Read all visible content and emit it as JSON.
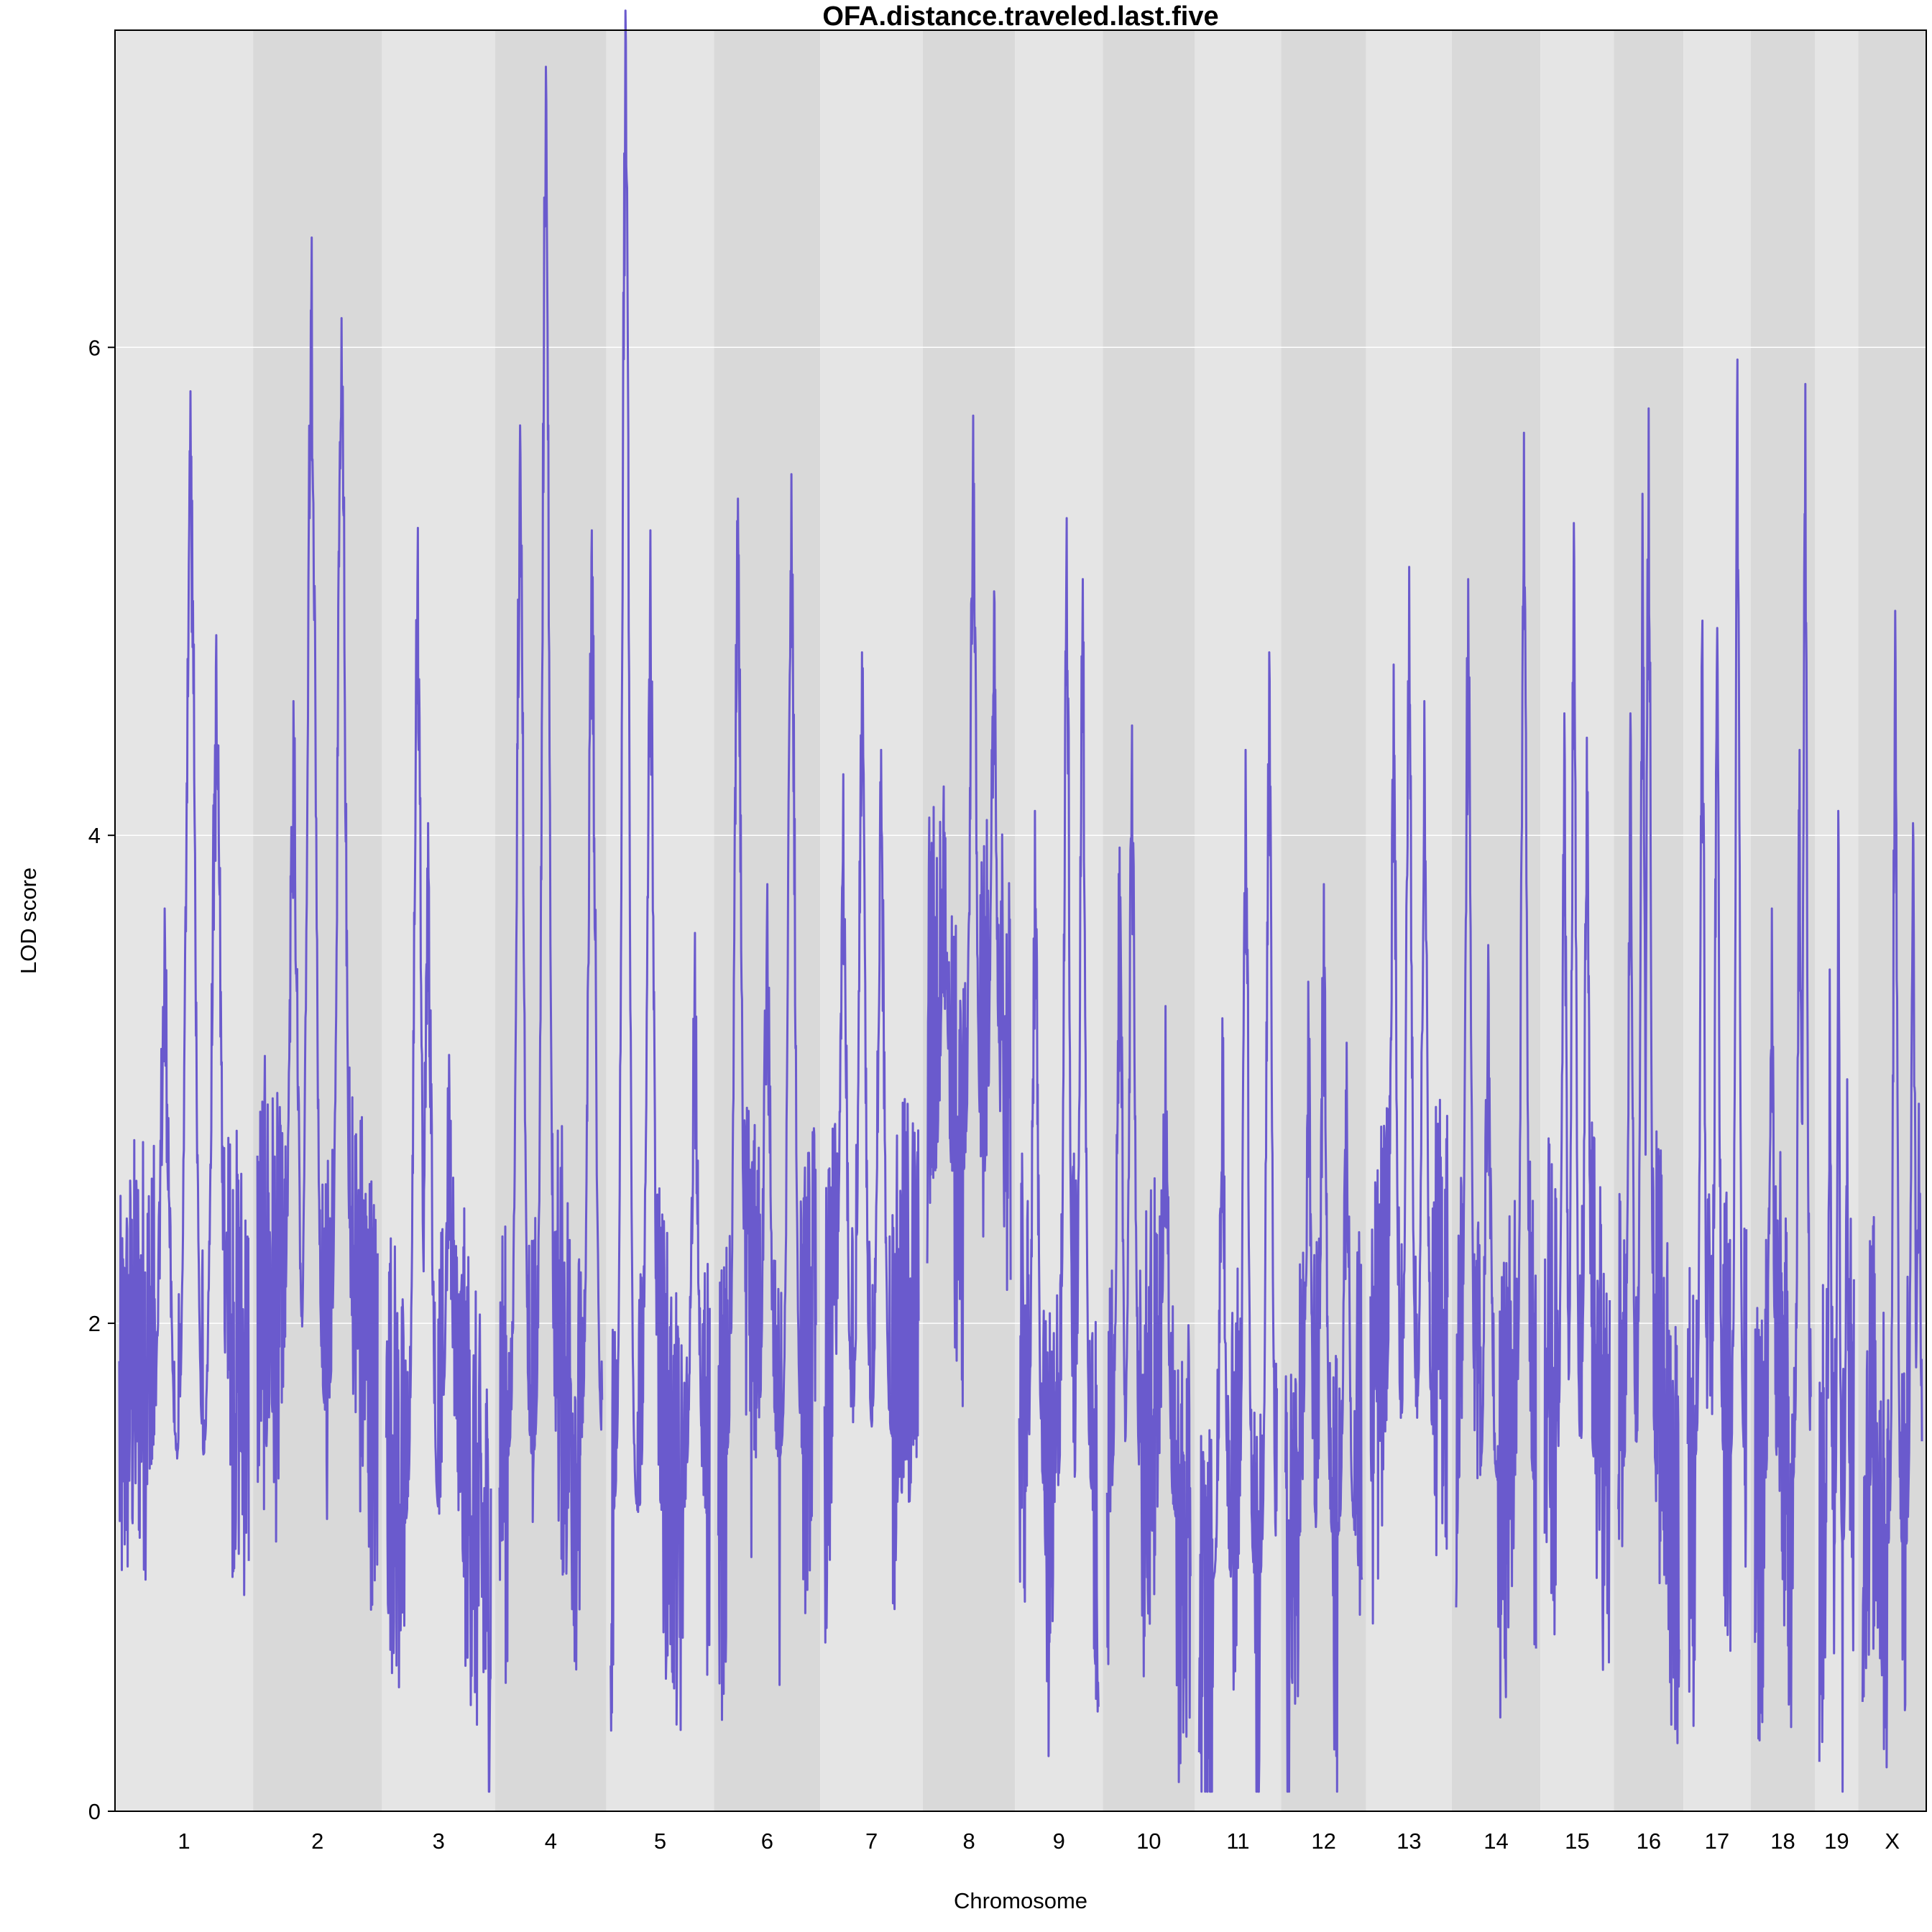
{
  "chart_data": {
    "type": "line",
    "title": "OFA.distance.traveled.last.five",
    "xlabel": "Chromosome",
    "ylabel": "LOD score",
    "ylim": [
      0,
      7.3
    ],
    "yticks": [
      0,
      2,
      4,
      6
    ],
    "grid": "horizontal",
    "colors": {
      "line": "#6a5acd",
      "band_light": "#e5e5e5",
      "band_dark": "#d9d9d9",
      "grid": "#ffffff",
      "frame": "#000000"
    },
    "chromosomes": [
      {
        "label": "1",
        "length": 195,
        "base": 1.55,
        "peaks": [
          [
            0.55,
            5.82
          ],
          [
            0.75,
            4.82
          ],
          [
            0.35,
            3.7
          ]
        ]
      },
      {
        "label": "2",
        "length": 182,
        "base": 1.8,
        "peaks": [
          [
            0.45,
            6.45
          ],
          [
            0.7,
            6.12
          ],
          [
            0.3,
            4.55
          ]
        ]
      },
      {
        "label": "3",
        "length": 160,
        "base": 1.3,
        "peaks": [
          [
            0.3,
            5.26
          ],
          [
            0.4,
            4.05
          ],
          [
            0.6,
            3.1
          ]
        ]
      },
      {
        "label": "4",
        "length": 157,
        "base": 1.6,
        "peaks": [
          [
            0.45,
            7.15
          ],
          [
            0.2,
            5.68
          ],
          [
            0.9,
            5.25
          ]
        ]
      },
      {
        "label": "5",
        "length": 152,
        "base": 1.35,
        "peaks": [
          [
            0.15,
            7.38
          ],
          [
            0.4,
            5.25
          ],
          [
            0.85,
            3.6
          ]
        ]
      },
      {
        "label": "6",
        "length": 150,
        "base": 1.6,
        "peaks": [
          [
            0.2,
            5.38
          ],
          [
            0.75,
            5.48
          ],
          [
            0.5,
            3.8
          ]
        ]
      },
      {
        "label": "7",
        "length": 145,
        "base": 1.7,
        "peaks": [
          [
            0.4,
            4.75
          ],
          [
            0.6,
            4.35
          ],
          [
            0.2,
            4.25
          ]
        ]
      },
      {
        "label": "8",
        "length": 130,
        "base": 2.9,
        "peaks": [
          [
            0.55,
            5.72
          ],
          [
            0.8,
            5.0
          ],
          [
            0.2,
            4.2
          ]
        ]
      },
      {
        "label": "9",
        "length": 124,
        "base": 1.45,
        "peaks": [
          [
            0.6,
            5.3
          ],
          [
            0.8,
            5.05
          ],
          [
            0.2,
            4.1
          ]
        ]
      },
      {
        "label": "10",
        "length": 130,
        "base": 1.35,
        "peaks": [
          [
            0.3,
            4.45
          ],
          [
            0.15,
            3.95
          ],
          [
            0.7,
            3.3
          ]
        ]
      },
      {
        "label": "11",
        "length": 122,
        "base": 1.05,
        "peaks": [
          [
            0.9,
            4.75
          ],
          [
            0.6,
            4.35
          ],
          [
            0.3,
            3.25
          ]
        ]
      },
      {
        "label": "12",
        "length": 120,
        "base": 1.25,
        "peaks": [
          [
            0.5,
            3.8
          ],
          [
            0.3,
            3.4
          ],
          [
            0.8,
            3.15
          ]
        ]
      },
      {
        "label": "13",
        "length": 121,
        "base": 1.7,
        "peaks": [
          [
            0.5,
            5.1
          ],
          [
            0.3,
            4.7
          ],
          [
            0.7,
            4.55
          ]
        ]
      },
      {
        "label": "14",
        "length": 125,
        "base": 1.5,
        "peaks": [
          [
            0.85,
            5.65
          ],
          [
            0.15,
            5.05
          ],
          [
            0.4,
            3.55
          ]
        ]
      },
      {
        "label": "15",
        "length": 104,
        "base": 1.55,
        "peaks": [
          [
            0.45,
            5.28
          ],
          [
            0.3,
            4.5
          ],
          [
            0.65,
            4.4
          ]
        ]
      },
      {
        "label": "16",
        "length": 98,
        "base": 1.55,
        "peaks": [
          [
            0.4,
            5.4
          ],
          [
            0.5,
            5.75
          ],
          [
            0.2,
            4.5
          ]
        ]
      },
      {
        "label": "17",
        "length": 95,
        "base": 1.6,
        "peaks": [
          [
            0.85,
            5.95
          ],
          [
            0.25,
            4.88
          ],
          [
            0.5,
            4.85
          ]
        ]
      },
      {
        "label": "18",
        "length": 91,
        "base": 1.5,
        "peaks": [
          [
            0.9,
            5.85
          ],
          [
            0.8,
            4.35
          ],
          [
            0.3,
            3.7
          ]
        ]
      },
      {
        "label": "19",
        "length": 61,
        "base": 1.2,
        "peaks": [
          [
            0.55,
            4.1
          ],
          [
            0.3,
            3.45
          ],
          [
            0.8,
            3.0
          ]
        ]
      },
      {
        "label": "X",
        "length": 96,
        "base": 1.2,
        "peaks": [
          [
            0.55,
            4.92
          ],
          [
            0.85,
            4.05
          ],
          [
            0.95,
            2.9
          ]
        ]
      }
    ]
  }
}
